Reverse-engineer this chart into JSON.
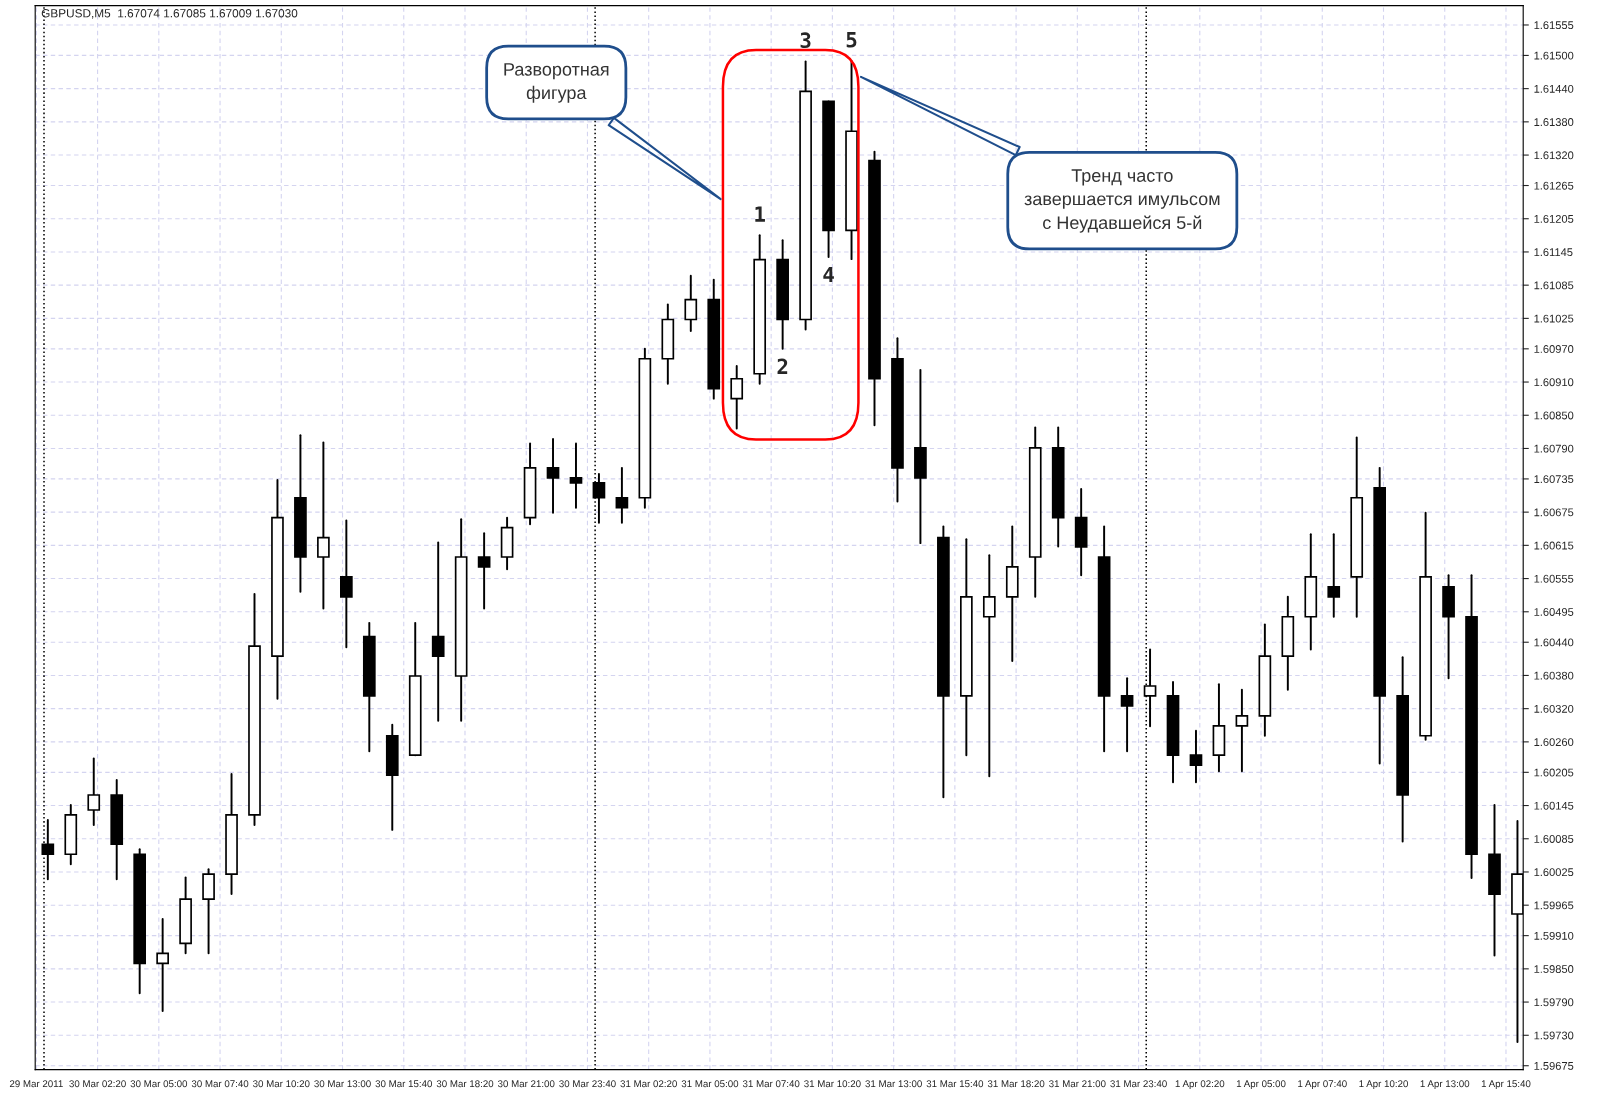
{
  "chart_data": {
    "type": "candlestick",
    "title": "GBPUSD,M5  1.67074 1.67085 1.67009 1.67030",
    "color": "#000000",
    "x": [
      "2011-03-30T00:10",
      "2011-03-30T01:10",
      "2011-03-30T02:10",
      "2011-03-30T03:10",
      "2011-03-30T04:10",
      "2011-03-30T05:10",
      "2011-03-30T06:10",
      "2011-03-30T07:10",
      "2011-03-30T08:10",
      "2011-03-30T09:10",
      "2011-03-30T10:10",
      "2011-03-30T11:10",
      "2011-03-30T12:10",
      "2011-03-30T13:10",
      "2011-03-30T14:10",
      "2011-03-30T15:10",
      "2011-03-30T16:10",
      "2011-03-30T17:10",
      "2011-03-30T18:10",
      "2011-03-30T19:10",
      "2011-03-30T20:10",
      "2011-03-30T21:10",
      "2011-03-30T22:10",
      "2011-03-30T23:10",
      "2011-03-31T00:10",
      "2011-03-31T01:10",
      "2011-03-31T02:10",
      "2011-03-31T03:10",
      "2011-03-31T04:10",
      "2011-03-31T05:10",
      "2011-03-31T06:10",
      "2011-03-31T07:10",
      "2011-03-31T08:10",
      "2011-03-31T09:10",
      "2011-03-31T10:10",
      "2011-03-31T11:10",
      "2011-03-31T12:10",
      "2011-03-31T13:10",
      "2011-03-31T14:10",
      "2011-03-31T15:10",
      "2011-03-31T16:10",
      "2011-03-31T17:10",
      "2011-03-31T18:10",
      "2011-03-31T19:10",
      "2011-03-31T20:10",
      "2011-03-31T21:10",
      "2011-03-31T22:10",
      "2011-03-31T23:10",
      "2011-04-01T00:10",
      "2011-04-01T01:10",
      "2011-04-01T02:10",
      "2011-04-01T03:10",
      "2011-04-01T04:10",
      "2011-04-01T05:10",
      "2011-04-01T06:10",
      "2011-04-01T07:10",
      "2011-04-01T08:10",
      "2011-04-01T09:10",
      "2011-04-01T10:10",
      "2011-04-01T11:10",
      "2011-04-01T12:10",
      "2011-04-01T13:10",
      "2011-04-01T14:10",
      "2011-04-01T15:10",
      "2011-04-01T16:10"
    ],
    "ohlc": [
      [
        1.60075,
        1.60119,
        1.60012,
        1.60057
      ],
      [
        1.60057,
        1.60146,
        1.60039,
        1.60128
      ],
      [
        1.60137,
        1.6023,
        1.6011,
        1.60164
      ],
      [
        1.60164,
        1.60191,
        1.60012,
        1.60075
      ],
      [
        1.60057,
        1.60066,
        1.59806,
        1.5986
      ],
      [
        1.5986,
        1.5994,
        1.59774,
        1.59878
      ],
      [
        1.59896,
        1.60015,
        1.59878,
        1.59976
      ],
      [
        1.59976,
        1.6003,
        1.59878,
        1.60021
      ],
      [
        1.60021,
        1.60202,
        1.59985,
        1.60128
      ],
      [
        1.60128,
        1.60527,
        1.6011,
        1.60433
      ],
      [
        1.60415,
        1.60733,
        1.60338,
        1.60665
      ],
      [
        1.60701,
        1.60814,
        1.60531,
        1.60594
      ],
      [
        1.60594,
        1.60801,
        1.60501,
        1.60629
      ],
      [
        1.60558,
        1.6066,
        1.60431,
        1.60522
      ],
      [
        1.6045,
        1.60475,
        1.60243,
        1.60343
      ],
      [
        1.60271,
        1.60291,
        1.60101,
        1.602
      ],
      [
        1.60236,
        1.60475,
        1.60236,
        1.60379
      ],
      [
        1.6045,
        1.6062,
        1.60298,
        1.60415
      ],
      [
        1.60379,
        1.60662,
        1.60298,
        1.60594
      ],
      [
        1.60594,
        1.60637,
        1.60501,
        1.60576
      ],
      [
        1.60594,
        1.60665,
        1.60572,
        1.60647
      ],
      [
        1.60665,
        1.60799,
        1.60653,
        1.60755
      ],
      [
        1.60755,
        1.60807,
        1.60674,
        1.60737
      ],
      [
        1.60737,
        1.60799,
        1.60683,
        1.60728
      ],
      [
        1.60728,
        1.60744,
        1.60656,
        1.60701
      ],
      [
        1.60701,
        1.60755,
        1.60656,
        1.60683
      ],
      [
        1.60701,
        1.6097,
        1.60683,
        1.60952
      ],
      [
        1.60952,
        1.6105,
        1.60907,
        1.61023
      ],
      [
        1.61023,
        1.61102,
        1.61002,
        1.61059
      ],
      [
        1.61059,
        1.61095,
        1.6088,
        1.60898
      ],
      [
        1.6088,
        1.60939,
        1.60826,
        1.60916
      ],
      [
        1.60925,
        1.61175,
        1.60907,
        1.61131
      ],
      [
        1.61131,
        1.61166,
        1.6097,
        1.61023
      ],
      [
        1.61023,
        1.61489,
        1.61005,
        1.61435
      ],
      [
        1.61417,
        1.61417,
        1.61136,
        1.61184
      ],
      [
        1.61184,
        1.6149,
        1.61132,
        1.61363
      ],
      [
        1.6131,
        1.61326,
        1.60832,
        1.60916
      ],
      [
        1.60952,
        1.60989,
        1.60694,
        1.60755
      ],
      [
        1.60791,
        1.60932,
        1.60619,
        1.60737
      ],
      [
        1.60629,
        1.60649,
        1.6016,
        1.60343
      ],
      [
        1.60343,
        1.60626,
        1.60236,
        1.60522
      ],
      [
        1.60486,
        1.60597,
        1.60198,
        1.60522
      ],
      [
        1.60522,
        1.60649,
        1.60406,
        1.60576
      ],
      [
        1.60594,
        1.60828,
        1.60522,
        1.60791
      ],
      [
        1.60791,
        1.60828,
        1.60613,
        1.60665
      ],
      [
        1.60665,
        1.60717,
        1.60561,
        1.60612
      ],
      [
        1.60594,
        1.60649,
        1.60243,
        1.60343
      ],
      [
        1.60343,
        1.60375,
        1.60243,
        1.60325
      ],
      [
        1.60343,
        1.60427,
        1.60288,
        1.60361
      ],
      [
        1.60343,
        1.60368,
        1.60187,
        1.60236
      ],
      [
        1.60236,
        1.6028,
        1.60187,
        1.60218
      ],
      [
        1.60236,
        1.60364,
        1.60207,
        1.60289
      ],
      [
        1.60289,
        1.60354,
        1.60207,
        1.60307
      ],
      [
        1.60307,
        1.60472,
        1.60271,
        1.60415
      ],
      [
        1.60415,
        1.60522,
        1.60354,
        1.60486
      ],
      [
        1.60486,
        1.60635,
        1.60427,
        1.60558
      ],
      [
        1.6054,
        1.60635,
        1.60486,
        1.60522
      ],
      [
        1.60558,
        1.6081,
        1.60486,
        1.60701
      ],
      [
        1.60719,
        1.60755,
        1.60221,
        1.60343
      ],
      [
        1.60343,
        1.60413,
        1.6008,
        1.60164
      ],
      [
        1.60271,
        1.60674,
        1.60264,
        1.60558
      ],
      [
        1.6054,
        1.60561,
        1.60375,
        1.60486
      ],
      [
        1.60486,
        1.60561,
        1.60014,
        1.60057
      ],
      [
        1.60057,
        1.60146,
        1.59874,
        1.59985
      ],
      [
        1.59949,
        1.60117,
        1.59718,
        1.60021
      ]
    ],
    "xlim": [
      "2011-03-29T23:37",
      "2011-04-01T16:25"
    ],
    "ylim": [
      1.59668,
      1.6159
    ],
    "xticks": [
      {
        "value": "2011-03-29T23:40",
        "label": "29 Mar 2011"
      },
      {
        "value": "2011-03-30T02:20",
        "label": "30 Mar 02:20"
      },
      {
        "value": "2011-03-30T05:00",
        "label": "30 Mar 05:00"
      },
      {
        "value": "2011-03-30T07:40",
        "label": "30 Mar 07:40"
      },
      {
        "value": "2011-03-30T10:20",
        "label": "30 Mar 10:20"
      },
      {
        "value": "2011-03-30T13:00",
        "label": "30 Mar 13:00"
      },
      {
        "value": "2011-03-30T15:40",
        "label": "30 Mar 15:40"
      },
      {
        "value": "2011-03-30T18:20",
        "label": "30 Mar 18:20"
      },
      {
        "value": "2011-03-30T21:00",
        "label": "30 Mar 21:00"
      },
      {
        "value": "2011-03-30T23:40",
        "label": "30 Mar 23:40"
      },
      {
        "value": "2011-03-31T02:20",
        "label": "31 Mar 02:20"
      },
      {
        "value": "2011-03-31T05:00",
        "label": "31 Mar 05:00"
      },
      {
        "value": "2011-03-31T07:40",
        "label": "31 Mar 07:40"
      },
      {
        "value": "2011-03-31T10:20",
        "label": "31 Mar 10:20"
      },
      {
        "value": "2011-03-31T13:00",
        "label": "31 Mar 13:00"
      },
      {
        "value": "2011-03-31T15:40",
        "label": "31 Mar 15:40"
      },
      {
        "value": "2011-03-31T18:20",
        "label": "31 Mar 18:20"
      },
      {
        "value": "2011-03-31T21:00",
        "label": "31 Mar 21:00"
      },
      {
        "value": "2011-03-31T23:40",
        "label": "31 Mar 23:40"
      },
      {
        "value": "2011-04-01T02:20",
        "label": "1 Apr 02:20"
      },
      {
        "value": "2011-04-01T05:00",
        "label": "1 Apr 05:00"
      },
      {
        "value": "2011-04-01T07:40",
        "label": "1 Apr 07:40"
      },
      {
        "value": "2011-04-01T10:20",
        "label": "1 Apr 10:20"
      },
      {
        "value": "2011-04-01T13:00",
        "label": "1 Apr 13:00"
      },
      {
        "value": "2011-04-01T15:40",
        "label": "1 Apr 15:40"
      }
    ],
    "yticks": [
      {
        "value": 1.59675,
        "label": "1.59675"
      },
      {
        "value": 1.5973,
        "label": "1.59730"
      },
      {
        "value": 1.5979,
        "label": "1.59790"
      },
      {
        "value": 1.5985,
        "label": "1.59850"
      },
      {
        "value": 1.5991,
        "label": "1.59910"
      },
      {
        "value": 1.59965,
        "label": "1.59965"
      },
      {
        "value": 1.60025,
        "label": "1.60025"
      },
      {
        "value": 1.60085,
        "label": "1.60085"
      },
      {
        "value": 1.60145,
        "label": "1.60145"
      },
      {
        "value": 1.60205,
        "label": "1.60205"
      },
      {
        "value": 1.6026,
        "label": "1.60260"
      },
      {
        "value": 1.6032,
        "label": "1.60320"
      },
      {
        "value": 1.6038,
        "label": "1.60380"
      },
      {
        "value": 1.6044,
        "label": "1.60440"
      },
      {
        "value": 1.60495,
        "label": "1.60495"
      },
      {
        "value": 1.60555,
        "label": "1.60555"
      },
      {
        "value": 1.60615,
        "label": "1.60615"
      },
      {
        "value": 1.60675,
        "label": "1.60675"
      },
      {
        "value": 1.60735,
        "label": "1.60735"
      },
      {
        "value": 1.6079,
        "label": "1.60790"
      },
      {
        "value": 1.6085,
        "label": "1.60850"
      },
      {
        "value": 1.6091,
        "label": "1.60910"
      },
      {
        "value": 1.6097,
        "label": "1.60970"
      },
      {
        "value": 1.61025,
        "label": "1.61025"
      },
      {
        "value": 1.61085,
        "label": "1.61085"
      },
      {
        "value": 1.61145,
        "label": "1.61145"
      },
      {
        "value": 1.61205,
        "label": "1.61205"
      },
      {
        "value": 1.61265,
        "label": "1.61265"
      },
      {
        "value": 1.6132,
        "label": "1.61320"
      },
      {
        "value": 1.6138,
        "label": "1.61380"
      },
      {
        "value": 1.6144,
        "label": "1.61440"
      },
      {
        "value": 1.615,
        "label": "1.61500"
      },
      {
        "value": 1.61555,
        "label": "1.61555"
      }
    ],
    "grid": true,
    "ref_lines": [
      {
        "axis": "x",
        "value": "2011-03-30T00:00",
        "color": "#000000",
        "line_style": "dotted"
      },
      {
        "axis": "x",
        "value": "2011-03-31T00:00",
        "color": "#000000",
        "line_style": "dotted"
      },
      {
        "axis": "x",
        "value": "2011-04-01T00:00",
        "color": "#000000",
        "line_style": "dotted"
      }
    ],
    "annotations": [
      "Разворотная\nфигура",
      "Тренд часто\nзавершается имульсом\nс Неудавшейся 5-й",
      {
        "text": "1",
        "x": "2011-03-31T07:10",
        "y": 1.61175
      },
      {
        "text": "2",
        "x": "2011-03-31T08:10",
        "y": 1.6097
      },
      {
        "text": "3",
        "x": "2011-03-31T09:10",
        "y": 1.61489
      },
      {
        "text": "4",
        "x": "2011-03-31T10:10",
        "y": 1.61136
      },
      {
        "text": "5",
        "x": "2011-03-31T11:10",
        "y": 1.6149
      }
    ]
  }
}
